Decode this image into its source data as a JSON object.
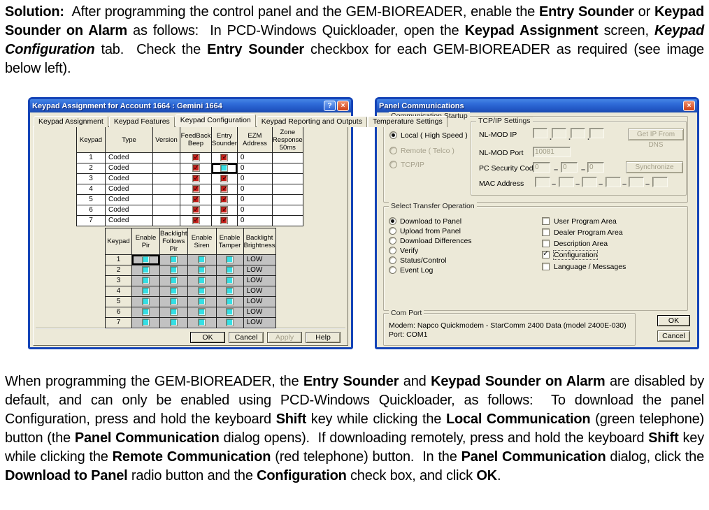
{
  "document": {
    "top_paragraph": [
      {
        "t": "Solution:",
        "b": 1
      },
      {
        "t": "  After programming the control panel and the GEM-BIOREADER, enable the "
      },
      {
        "t": "Entry Sounder",
        "b": 1
      },
      {
        "t": " or "
      },
      {
        "t": "Keypad Sounder on Alarm",
        "b": 1
      },
      {
        "t": " as follows:  In PCD-Windows Quickloader, open the "
      },
      {
        "t": "Keypad Assignment",
        "b": 1
      },
      {
        "t": " screen, "
      },
      {
        "t": "Keypad Configuration",
        "b": 1,
        "i": 1
      },
      {
        "t": " tab.  Check the "
      },
      {
        "t": "Entry Sounder",
        "b": 1
      },
      {
        "t": " checkbox for each GEM-BIOREADER as required (see image below left)."
      }
    ],
    "bottom_paragraph": [
      {
        "t": "When programming the GEM-BIOREADER, the "
      },
      {
        "t": "Entry Sounder",
        "b": 1
      },
      {
        "t": " and "
      },
      {
        "t": "Keypad Sounder on Alarm",
        "b": 1
      },
      {
        "t": " are disabled by default, and can only be enabled using PCD-Windows Quickloader, as follows:  To download the panel Configuration, press and hold the keyboard "
      },
      {
        "t": "Shift",
        "b": 1
      },
      {
        "t": " key while clicking the "
      },
      {
        "t": "Local Communication",
        "b": 1
      },
      {
        "t": " (green telephone) button (the "
      },
      {
        "t": "Panel Communication",
        "b": 1
      },
      {
        "t": " dialog opens).  If downloading remotely, press and hold the keyboard "
      },
      {
        "t": "Shift",
        "b": 1
      },
      {
        "t": " key while clicking the "
      },
      {
        "t": "Remote Communication",
        "b": 1
      },
      {
        "t": " (red telephone) button.  In the "
      },
      {
        "t": "Panel Communication",
        "b": 1
      },
      {
        "t": " dialog, click the "
      },
      {
        "t": "Download to Panel",
        "b": 1
      },
      {
        "t": " radio button and the "
      },
      {
        "t": "Configuration",
        "b": 1
      },
      {
        "t": " check box, and click "
      },
      {
        "t": "OK",
        "b": 1
      },
      {
        "t": "."
      }
    ]
  },
  "keypad_dialog": {
    "title": "Keypad Assignment for Account 1664 : Gemini 1664",
    "help_button": "?",
    "close_button": "×",
    "tabs": [
      {
        "label": "Keypad Assignment",
        "active": false
      },
      {
        "label": "Keypad Features",
        "active": false
      },
      {
        "label": "Keypad Configuration",
        "active": true
      },
      {
        "label": "Keypad Reporting and Outputs",
        "active": false
      },
      {
        "label": "Temperature Settings",
        "active": false
      }
    ],
    "config_table": {
      "headers": [
        "Keypad",
        "Type",
        "Version",
        "FeedBack\nBeep",
        "Entry\nSounder",
        "EZM\nAddress",
        "Zone\nResponse\n50ms"
      ],
      "rows": [
        {
          "keypad": "1",
          "type": "Coded",
          "version": "",
          "feedback_beep": true,
          "entry_sounder": true,
          "entry_selected": false,
          "ezm_address": "0",
          "zone_response": ""
        },
        {
          "keypad": "2",
          "type": "Coded",
          "version": "",
          "feedback_beep": true,
          "entry_sounder": false,
          "entry_selected": true,
          "ezm_address": "0",
          "zone_response": ""
        },
        {
          "keypad": "3",
          "type": "Coded",
          "version": "",
          "feedback_beep": true,
          "entry_sounder": true,
          "entry_selected": false,
          "ezm_address": "0",
          "zone_response": ""
        },
        {
          "keypad": "4",
          "type": "Coded",
          "version": "",
          "feedback_beep": true,
          "entry_sounder": true,
          "entry_selected": false,
          "ezm_address": "0",
          "zone_response": ""
        },
        {
          "keypad": "5",
          "type": "Coded",
          "version": "",
          "feedback_beep": true,
          "entry_sounder": true,
          "entry_selected": false,
          "ezm_address": "0",
          "zone_response": ""
        },
        {
          "keypad": "6",
          "type": "Coded",
          "version": "",
          "feedback_beep": true,
          "entry_sounder": true,
          "entry_selected": false,
          "ezm_address": "0",
          "zone_response": ""
        },
        {
          "keypad": "7",
          "type": "Coded",
          "version": "",
          "feedback_beep": true,
          "entry_sounder": true,
          "entry_selected": false,
          "ezm_address": "0",
          "zone_response": ""
        }
      ]
    },
    "options_table": {
      "headers": [
        "Keypad",
        "Enable\nPir",
        "Backlight\nFollows\nPir",
        "Enable\nSiren",
        "Enable\nTamper",
        "Backlight\nBrightness"
      ],
      "rows": [
        {
          "keypad": "1",
          "enable_pir": false,
          "pir_selected": true,
          "backlight_follows_pir": false,
          "enable_siren": false,
          "enable_tamper": false,
          "backlight_brightness": "LOW"
        },
        {
          "keypad": "2",
          "enable_pir": false,
          "pir_selected": false,
          "backlight_follows_pir": false,
          "enable_siren": false,
          "enable_tamper": false,
          "backlight_brightness": "LOW"
        },
        {
          "keypad": "3",
          "enable_pir": false,
          "pir_selected": false,
          "backlight_follows_pir": false,
          "enable_siren": false,
          "enable_tamper": false,
          "backlight_brightness": "LOW"
        },
        {
          "keypad": "4",
          "enable_pir": false,
          "pir_selected": false,
          "backlight_follows_pir": false,
          "enable_siren": false,
          "enable_tamper": false,
          "backlight_brightness": "LOW"
        },
        {
          "keypad": "5",
          "enable_pir": false,
          "pir_selected": false,
          "backlight_follows_pir": false,
          "enable_siren": false,
          "enable_tamper": false,
          "backlight_brightness": "LOW"
        },
        {
          "keypad": "6",
          "enable_pir": false,
          "pir_selected": false,
          "backlight_follows_pir": false,
          "enable_siren": false,
          "enable_tamper": false,
          "backlight_brightness": "LOW"
        },
        {
          "keypad": "7",
          "enable_pir": false,
          "pir_selected": false,
          "backlight_follows_pir": false,
          "enable_siren": false,
          "enable_tamper": false,
          "backlight_brightness": "LOW"
        }
      ]
    },
    "buttons": [
      {
        "label": "OK",
        "disabled": false,
        "default": true
      },
      {
        "label": "Cancel",
        "disabled": false,
        "default": false
      },
      {
        "label": "Apply",
        "disabled": true,
        "default": false
      },
      {
        "label": "Help",
        "disabled": false,
        "default": false
      }
    ]
  },
  "panel_dialog": {
    "title": "Panel Communications",
    "close_button": "×",
    "communication_startup": {
      "label": "Communication Startup",
      "radios": [
        {
          "label": "Local ( High Speed )",
          "selected": true,
          "disabled": false
        },
        {
          "label": "Remote ( Telco )",
          "selected": false,
          "disabled": true
        },
        {
          "label": "TCP/IP",
          "selected": false,
          "disabled": true
        }
      ]
    },
    "tcpip": {
      "label": "TCP/IP Settings",
      "nl_mod_ip_label": "NL-MOD IP",
      "get_ip_button": "Get IP From DNS",
      "nl_mod_port_label": "NL-MOD Port",
      "nl_mod_port_value": "10081",
      "pc_security_label": "PC Security Code",
      "pc_security_values": [
        "0",
        "0",
        "0"
      ],
      "synchronize_button": "Synchronize",
      "mac_label": "MAC Address"
    },
    "transfer": {
      "label": "Select Transfer Operation",
      "radios": [
        {
          "label": "Download to Panel",
          "selected": true,
          "disabled": false
        },
        {
          "label": "Upload from Panel",
          "selected": false,
          "disabled": false
        },
        {
          "label": "Download Differences",
          "selected": false,
          "disabled": false
        },
        {
          "label": "Verify",
          "selected": false,
          "disabled": false
        },
        {
          "label": "Status/Control",
          "selected": false,
          "disabled": false
        },
        {
          "label": "Event Log",
          "selected": false,
          "disabled": false
        }
      ],
      "checkboxes": [
        {
          "label": "User Program Area",
          "checked": false,
          "focused": false
        },
        {
          "label": "Dealer Program Area",
          "checked": false,
          "focused": false
        },
        {
          "label": "Description Area",
          "checked": false,
          "focused": false
        },
        {
          "label": "Configuration",
          "checked": true,
          "focused": true
        },
        {
          "label": "Language / Messages",
          "checked": false,
          "focused": false
        }
      ]
    },
    "com_port": {
      "label": "Com Port",
      "lines": [
        "Modem: Napco Quickmodem - StarComm 2400 Data (model 2400E-030)",
        "Port: COM1"
      ]
    },
    "ok_button": "OK",
    "cancel_button": "Cancel"
  }
}
